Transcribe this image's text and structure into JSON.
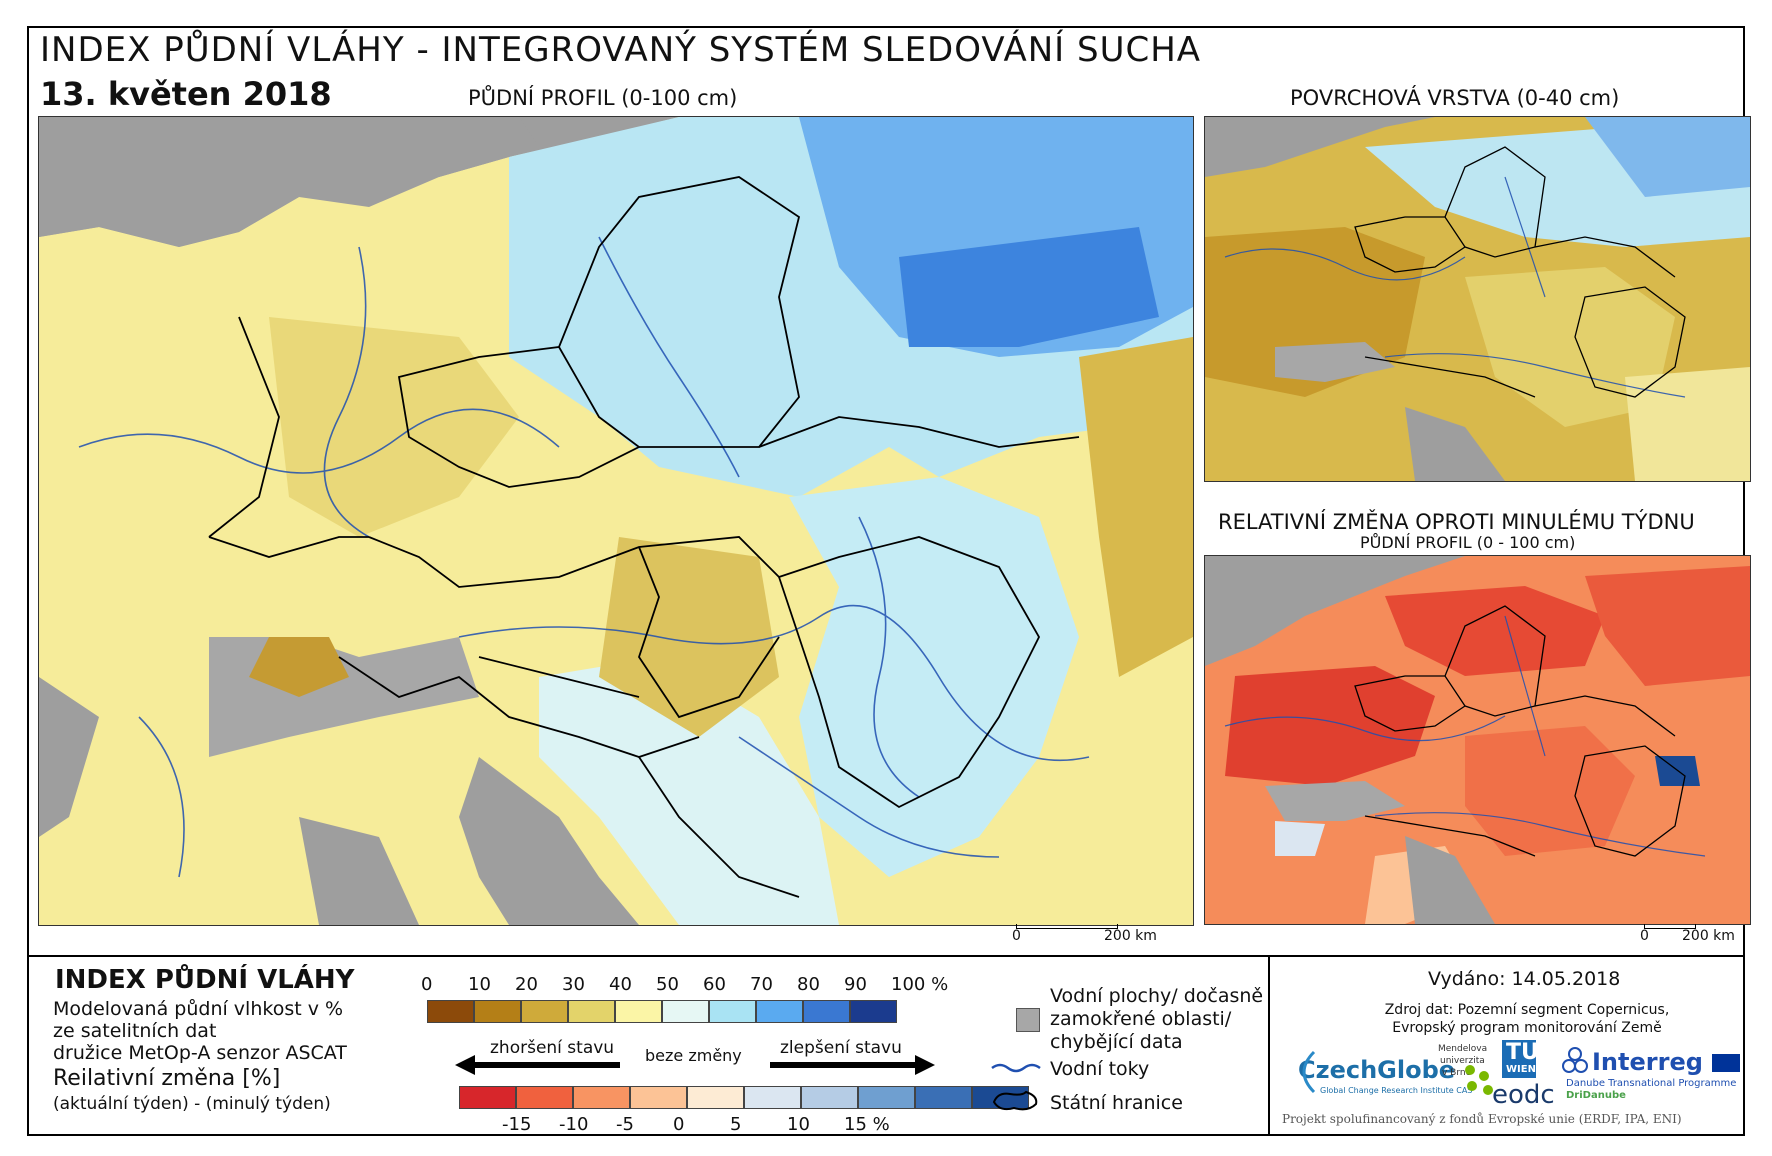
{
  "header": {
    "title": "INDEX PŮDNÍ VLÁHY - INTEGROVANÝ SYSTÉM SLEDOVÁNÍ SUCHA",
    "date": "13. květen 2018"
  },
  "maps": {
    "main_label": "PŮDNÍ PROFIL (0-100 cm)",
    "surface_label": "POVRCHOVÁ VRSTVA (0-40 cm)",
    "change_label": "RELATIVNÍ ZMĚNA OPROTI MINULÉMU TÝDNU",
    "change_sublabel": "PŮDNÍ PROFIL (0 - 100 cm)",
    "scale_zero": "0",
    "scale_end": "200 km"
  },
  "legend": {
    "title": "INDEX PŮDNÍ VLÁHY",
    "desc_line1": "Modelovaná půdní vlhkost v %",
    "desc_line2": "ze satelitních dat",
    "desc_line3": "družice MetOp-A senzor ASCAT",
    "change_title": "Reilativní změna [%]",
    "change_desc": "(aktuální týden) - (minulý týden)",
    "index_ticks": [
      "0",
      "10",
      "20",
      "30",
      "40",
      "50",
      "60",
      "70",
      "80",
      "90",
      "100 %"
    ],
    "index_colors": [
      "#8c4a0a",
      "#b47f17",
      "#cfaa3a",
      "#e3d36a",
      "#fbf5a6",
      "#e6f7f4",
      "#a9e3f3",
      "#5aaaf0",
      "#3a78d2",
      "#1b3b8e"
    ],
    "worse_label": "zhoršení stavu",
    "nochange_label": "beze změny",
    "better_label": "zlepšení stavu",
    "change_ticks": [
      "-15",
      "-10",
      "-5",
      "0",
      "5",
      "10",
      "15 %"
    ],
    "change_colors": [
      "#d7262b",
      "#f0613e",
      "#f89462",
      "#fcc396",
      "#fdebd4",
      "#dbe6f1",
      "#b5cce5",
      "#6f9fd0",
      "#3a6fb5",
      "#1b4a93"
    ],
    "water_label_1": "Vodní plochy/ dočasně",
    "water_label_2": "zamokřené oblasti/",
    "water_label_3": "chybějící data",
    "rivers_label": "Vodní toky",
    "borders_label": "Státní hranice"
  },
  "info": {
    "issued": "Vydáno: 14.05.2018",
    "source_1": "Zdroj dat: Pozemní segment Copernicus,",
    "source_2": "Evropský program monitorování Země",
    "logo_czechglobe": "CzechGlobe",
    "logo_czechglobe_sub": "Global Change Research Institute CAS",
    "logo_mendel_1": "Mendelova",
    "logo_mendel_2": "univerzita",
    "logo_mendel_3": "v Brně",
    "logo_tu": "TU",
    "logo_tu_sub": "WIEN",
    "logo_eodc": "eodc",
    "logo_interreg": "Interreg",
    "logo_interreg_sub": "Danube Transnational Programme",
    "logo_dridanube": "DriDanube",
    "footer": "Projekt spolufinancovaný z fondů Evropské unie (ERDF, IPA, ENI)"
  }
}
